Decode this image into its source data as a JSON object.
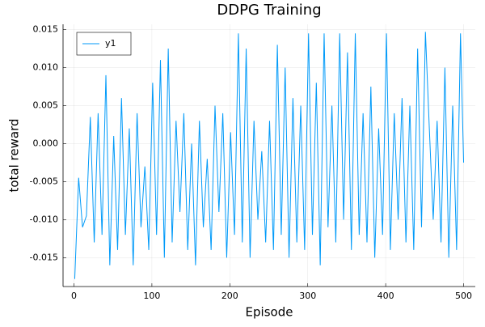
{
  "chart_data": {
    "type": "line",
    "title": "DDPG Training",
    "x_label": "Episode",
    "y_label": "total reward",
    "x": [
      1,
      6,
      11,
      16,
      21,
      26,
      31,
      36,
      41,
      46,
      51,
      56,
      61,
      66,
      71,
      76,
      81,
      86,
      91,
      96,
      101,
      106,
      111,
      116,
      121,
      126,
      131,
      136,
      141,
      146,
      151,
      156,
      161,
      166,
      171,
      176,
      181,
      186,
      191,
      196,
      201,
      206,
      211,
      216,
      221,
      226,
      231,
      236,
      241,
      246,
      251,
      256,
      261,
      266,
      271,
      276,
      281,
      286,
      291,
      296,
      301,
      306,
      311,
      316,
      321,
      326,
      331,
      336,
      341,
      346,
      351,
      356,
      361,
      366,
      371,
      376,
      381,
      386,
      391,
      396,
      401,
      406,
      411,
      416,
      421,
      426,
      431,
      436,
      441,
      446,
      451,
      456,
      461,
      466,
      471,
      476,
      481,
      486,
      491,
      496,
      500
    ],
    "series": [
      {
        "name": "y1",
        "color": "#009af9",
        "values": [
          -0.0178,
          -0.0045,
          -0.011,
          -0.0095,
          0.0035,
          -0.013,
          0.004,
          -0.012,
          0.009,
          -0.016,
          0.001,
          -0.014,
          0.006,
          -0.012,
          0.002,
          -0.016,
          0.004,
          -0.011,
          -0.003,
          -0.014,
          0.008,
          -0.012,
          0.011,
          -0.015,
          0.0125,
          -0.013,
          0.003,
          -0.009,
          0.004,
          -0.014,
          0.0,
          -0.016,
          0.003,
          -0.011,
          -0.002,
          -0.014,
          0.005,
          -0.009,
          0.004,
          -0.015,
          0.0015,
          -0.012,
          0.0145,
          -0.013,
          0.0125,
          -0.015,
          0.003,
          -0.01,
          -0.001,
          -0.013,
          0.003,
          -0.014,
          0.013,
          -0.012,
          0.01,
          -0.015,
          0.006,
          -0.013,
          0.005,
          -0.014,
          0.0145,
          -0.012,
          0.008,
          -0.016,
          0.0145,
          -0.011,
          0.005,
          -0.013,
          0.0145,
          -0.01,
          0.012,
          -0.014,
          0.0145,
          -0.012,
          0.004,
          -0.013,
          0.0075,
          -0.015,
          0.002,
          -0.012,
          0.0145,
          -0.014,
          0.004,
          -0.01,
          0.006,
          -0.013,
          0.005,
          -0.014,
          0.0125,
          -0.011,
          0.0147,
          0.002,
          -0.01,
          0.003,
          -0.013,
          0.01,
          -0.015,
          0.005,
          -0.014,
          0.0145,
          -0.0025
        ]
      }
    ],
    "xlim": [
      -14,
      515
    ],
    "xticks": [
      0,
      100,
      200,
      300,
      400,
      500
    ],
    "ylim": [
      -0.0188,
      0.0157
    ],
    "yticks": [
      -0.015,
      {
        "value": -0.01,
        "label": "-0.010"
      },
      -0.005,
      {
        "value": 0,
        "label": "0.000"
      },
      0.005,
      {
        "value": 0.01,
        "label": "0.010"
      },
      0.015
    ],
    "grid": true,
    "legend_position": "top-left"
  }
}
